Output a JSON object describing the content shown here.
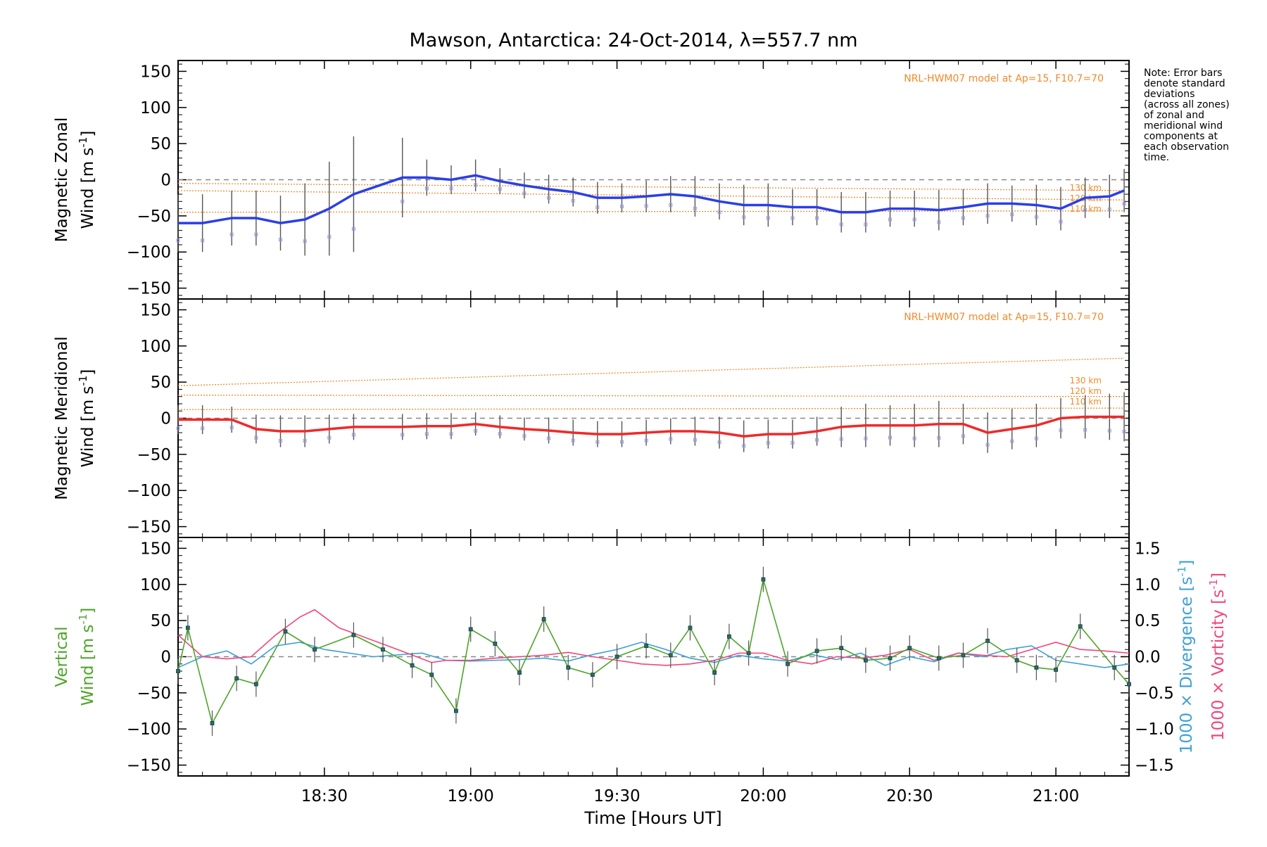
{
  "title": "Mawson, Antarctica: 24-Oct-2014, λ=557.7 nm",
  "note": "Note: Error bars\ndenote standard\ndeviations\n(across all zones)\nof zonal and\nmeridional wind\ncomponents at\neach observation\ntime.",
  "colors": {
    "zonal": "#2a3fe8",
    "meridional": "#ee2a2a",
    "vertical": "#4ea52a",
    "divergence": "#3da0d8",
    "vorticity": "#f0467a",
    "model": "#f08a2a",
    "errorbar": "#555555",
    "zero": "#888888"
  },
  "chart_data": [
    {
      "type": "line",
      "panel": "zonal",
      "ylabel_line1": "Magnetic Zonal",
      "ylabel_line2": "Wind [m s",
      "ylabel_sup": "-1",
      "ylabel_close": "]",
      "ylim": [
        -165,
        165
      ],
      "yticks": [
        -150,
        -100,
        -50,
        0,
        50,
        100,
        150
      ],
      "model_label": "NRL-HWM07 model at Ap=15, F10.7=70",
      "series": [
        {
          "x": [
            "18:00",
            "18:05",
            "18:11",
            "18:16",
            "18:21",
            "18:26",
            "18:31",
            "18:36",
            "18:46",
            "18:51",
            "18:56",
            "19:01",
            "19:06",
            "19:11",
            "19:16",
            "19:21",
            "19:26",
            "19:31",
            "19:36",
            "19:41",
            "19:46",
            "19:51",
            "19:56",
            "20:01",
            "20:06",
            "20:11",
            "20:16",
            "20:21",
            "20:26",
            "20:31",
            "20:36",
            "20:41",
            "20:46",
            "20:51",
            "20:56",
            "21:01",
            "21:06",
            "21:11",
            "21:14"
          ],
          "y": [
            -60,
            -60,
            -53,
            -53,
            -60,
            -55,
            -40,
            -20,
            3,
            3,
            0,
            6,
            -2,
            -8,
            -13,
            -17,
            -25,
            -25,
            -23,
            -20,
            -23,
            -30,
            -35,
            -35,
            -38,
            -38,
            -45,
            -45,
            -40,
            -40,
            -42,
            -38,
            -33,
            -33,
            -35,
            -40,
            -25,
            -23,
            -15
          ],
          "err": [
            40,
            40,
            38,
            38,
            38,
            50,
            65,
            80,
            55,
            25,
            20,
            22,
            18,
            18,
            20,
            20,
            22,
            20,
            22,
            25,
            28,
            25,
            28,
            30,
            25,
            25,
            28,
            28,
            25,
            25,
            28,
            25,
            28,
            25,
            28,
            30,
            28,
            30,
            30
          ]
        }
      ],
      "model": [
        {
          "name": "130 km",
          "x": [
            "18:00",
            "21:14"
          ],
          "y": [
            -5,
            -15
          ]
        },
        {
          "name": "120 km",
          "x": [
            "18:00",
            "21:14"
          ],
          "y": [
            -15,
            -28
          ]
        },
        {
          "name": "110 km",
          "x": [
            "18:00",
            "21:14"
          ],
          "y": [
            -45,
            -43
          ]
        }
      ]
    },
    {
      "type": "line",
      "panel": "meridional",
      "ylabel_line1": "Magnetic Meridional",
      "ylabel_line2": "Wind [m s",
      "ylabel_sup": "-1",
      "ylabel_close": "]",
      "ylim": [
        -165,
        165
      ],
      "yticks": [
        -150,
        -100,
        -50,
        0,
        50,
        100,
        150
      ],
      "model_label": "NRL-HWM07 model at Ap=15, F10.7=70",
      "series": [
        {
          "x": [
            "18:00",
            "18:05",
            "18:11",
            "18:16",
            "18:21",
            "18:26",
            "18:31",
            "18:36",
            "18:46",
            "18:51",
            "18:56",
            "19:01",
            "19:06",
            "19:11",
            "19:16",
            "19:21",
            "19:26",
            "19:31",
            "19:36",
            "19:41",
            "19:46",
            "19:51",
            "19:56",
            "20:01",
            "20:06",
            "20:11",
            "20:16",
            "20:21",
            "20:26",
            "20:31",
            "20:36",
            "20:41",
            "20:46",
            "20:51",
            "20:56",
            "21:01",
            "21:06",
            "21:11",
            "21:14"
          ],
          "y": [
            -2,
            -2,
            -2,
            -15,
            -18,
            -18,
            -15,
            -12,
            -12,
            -11,
            -11,
            -8,
            -12,
            -15,
            -17,
            -20,
            -22,
            -22,
            -20,
            -18,
            -18,
            -20,
            -25,
            -22,
            -22,
            -18,
            -12,
            -10,
            -10,
            -10,
            -8,
            -8,
            -20,
            -15,
            -10,
            0,
            2,
            2,
            2
          ],
          "err": [
            20,
            20,
            18,
            20,
            22,
            22,
            20,
            18,
            18,
            18,
            18,
            16,
            16,
            16,
            18,
            18,
            18,
            18,
            18,
            18,
            20,
            22,
            22,
            20,
            20,
            20,
            28,
            30,
            28,
            30,
            32,
            28,
            28,
            28,
            30,
            28,
            30,
            32,
            34
          ]
        }
      ],
      "model": [
        {
          "name": "130 km",
          "x": [
            "18:00",
            "21:14"
          ],
          "y": [
            45,
            83
          ]
        },
        {
          "name": "120 km",
          "x": [
            "18:00",
            "21:14"
          ],
          "y": [
            32,
            30
          ]
        },
        {
          "name": "110 km",
          "x": [
            "18:00",
            "21:14"
          ],
          "y": [
            12,
            14
          ]
        }
      ]
    },
    {
      "type": "line",
      "panel": "vertical",
      "ylabel_line1": "Vertical",
      "ylabel_line2": "Wind [m s",
      "ylabel_sup": "-1",
      "ylabel_close": "]",
      "ylim": [
        -165,
        165
      ],
      "yticks": [
        -150,
        -100,
        -50,
        0,
        50,
        100,
        150
      ],
      "y2lim": [
        -1.65,
        1.65
      ],
      "y2ticks": [
        -1.5,
        -1.0,
        -0.5,
        0.0,
        0.5,
        1.0,
        1.5
      ],
      "y2label_div": "1000 × Divergence [s",
      "y2label_vor": "1000 × Vorticity [s",
      "xticks": [
        "18:30",
        "19:00",
        "19:30",
        "20:00",
        "20:30",
        "21:00"
      ],
      "xlabel": "Time [Hours UT]",
      "series": [
        {
          "name": "Vertical",
          "axis": "left",
          "x": [
            "18:00",
            "18:02",
            "18:07",
            "18:12",
            "18:16",
            "18:22",
            "18:28",
            "18:36",
            "18:42",
            "18:48",
            "18:52",
            "18:57",
            "19:00",
            "19:05",
            "19:10",
            "19:15",
            "19:20",
            "19:25",
            "19:30",
            "19:36",
            "19:41",
            "19:45",
            "19:50",
            "19:53",
            "19:57",
            "20:00",
            "20:05",
            "20:11",
            "20:16",
            "20:21",
            "20:26",
            "20:30",
            "20:36",
            "20:41",
            "20:46",
            "20:52",
            "20:56",
            "21:00",
            "21:05",
            "21:12",
            "21:15"
          ],
          "y": [
            -20,
            40,
            -92,
            -30,
            -38,
            35,
            10,
            30,
            10,
            -12,
            -25,
            -75,
            38,
            18,
            -22,
            52,
            -15,
            -25,
            0,
            15,
            2,
            40,
            -22,
            28,
            5,
            107,
            -10,
            8,
            12,
            -5,
            -2,
            12,
            -2,
            2,
            22,
            -5,
            -15,
            -18,
            42,
            -15,
            -38
          ]
        },
        {
          "name": "1000 × Divergence",
          "axis": "right",
          "x": [
            "18:00",
            "18:05",
            "18:10",
            "18:15",
            "18:20",
            "18:25",
            "18:30",
            "18:40",
            "18:50",
            "18:55",
            "19:00",
            "19:05",
            "19:10",
            "19:15",
            "19:20",
            "19:25",
            "19:30",
            "19:35",
            "19:40",
            "19:45",
            "19:50",
            "19:55",
            "20:00",
            "20:05",
            "20:10",
            "20:15",
            "20:20",
            "20:25",
            "20:30",
            "20:35",
            "20:40",
            "20:45",
            "20:50",
            "20:55",
            "21:00",
            "21:05",
            "21:10",
            "21:15"
          ],
          "y": [
            -0.15,
            0.0,
            0.08,
            -0.1,
            0.15,
            0.2,
            0.1,
            0.0,
            0.05,
            -0.05,
            -0.06,
            -0.05,
            -0.04,
            -0.02,
            -0.06,
            0.03,
            0.1,
            0.2,
            0.1,
            -0.02,
            -0.08,
            0.02,
            -0.03,
            -0.06,
            0.03,
            -0.04,
            0.05,
            -0.12,
            0.0,
            -0.07,
            0.05,
            0.0,
            0.1,
            0.15,
            -0.05,
            -0.1,
            -0.15,
            -0.1
          ]
        },
        {
          "name": "1000 × Vorticity",
          "axis": "right",
          "x": [
            "18:00",
            "18:05",
            "18:10",
            "18:15",
            "18:20",
            "18:25",
            "18:28",
            "18:33",
            "18:45",
            "18:52",
            "18:55",
            "19:00",
            "19:05",
            "19:10",
            "19:15",
            "19:20",
            "19:25",
            "19:30",
            "19:35",
            "19:40",
            "19:45",
            "19:50",
            "19:55",
            "20:00",
            "20:05",
            "20:10",
            "20:15",
            "20:20",
            "20:25",
            "20:30",
            "20:35",
            "20:40",
            "20:45",
            "20:50",
            "20:55",
            "21:00",
            "21:05",
            "21:10",
            "21:15"
          ],
          "y": [
            0.3,
            0.0,
            -0.03,
            0.0,
            0.3,
            0.55,
            0.65,
            0.4,
            0.1,
            -0.08,
            -0.05,
            -0.05,
            -0.02,
            0.0,
            0.02,
            0.06,
            0.0,
            -0.05,
            -0.1,
            -0.12,
            -0.1,
            -0.05,
            0.05,
            0.05,
            -0.05,
            -0.1,
            0.0,
            -0.02,
            0.02,
            0.1,
            -0.05,
            0.05,
            0.02,
            0.0,
            0.1,
            0.2,
            0.1,
            0.08,
            0.05
          ]
        }
      ]
    }
  ]
}
